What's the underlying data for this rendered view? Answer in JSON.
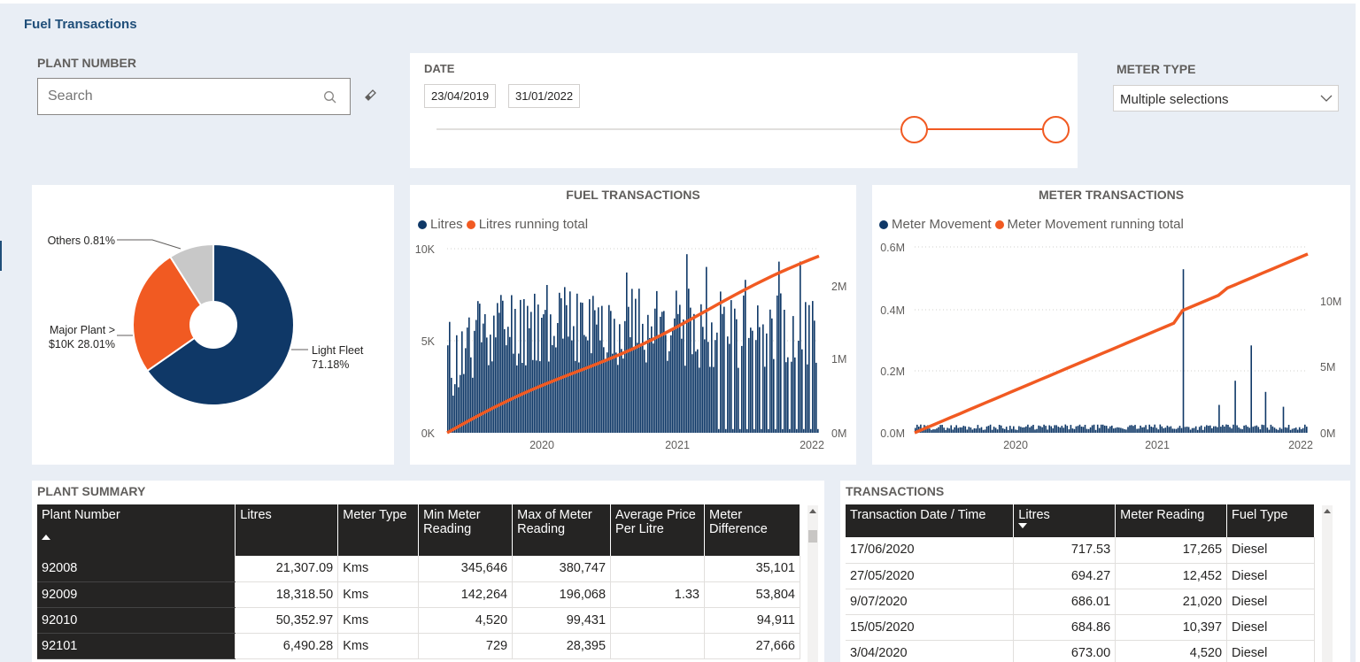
{
  "page": {
    "title": "Fuel Transactions"
  },
  "plant_slicer": {
    "title": "PLANT NUMBER",
    "placeholder": "Search",
    "search_icon": "search-icon",
    "clear_icon": "eraser-icon"
  },
  "date_slicer": {
    "title": "DATE",
    "start": "23/04/2019",
    "end": "31/01/2022"
  },
  "meter_slicer": {
    "title": "METER TYPE",
    "value": "Multiple selections",
    "icon": "chevron-down-icon"
  },
  "colors": {
    "navy": "#0f3867",
    "orange": "#f15a22",
    "grey": "#c8c8c8",
    "header": "#252423"
  },
  "pie": {
    "labels": {
      "others": "Others 0.81%",
      "major_1": "Major Plant >",
      "major_2": "$10K 28.01%",
      "light_1": "Light Fleet",
      "light_2": "71.18%"
    }
  },
  "fuel_chart": {
    "title": "FUEL TRANSACTIONS",
    "legend": [
      "Litres",
      "Litres running total"
    ],
    "left_ticks": [
      "10K",
      "5K",
      "0K"
    ],
    "right_ticks": [
      "2M",
      "1M",
      "0M"
    ],
    "x_ticks": [
      "2020",
      "2021",
      "2022"
    ]
  },
  "meter_chart": {
    "title": "METER TRANSACTIONS",
    "legend": [
      "Meter Movement",
      "Meter Movement running total"
    ],
    "left_ticks": [
      "0.6M",
      "0.4M",
      "0.2M",
      "0.0M"
    ],
    "right_ticks": [
      "10M",
      "5M",
      "0M"
    ],
    "x_ticks": [
      "2020",
      "2021",
      "2022"
    ]
  },
  "chart_data": [
    {
      "type": "pie",
      "categories": [
        "Light Fleet",
        "Major Plant > $10K",
        "Others"
      ],
      "values": [
        71.18,
        28.01,
        0.81
      ],
      "unit": "%"
    },
    {
      "type": "bar",
      "title": "FUEL TRANSACTIONS",
      "series": [
        {
          "name": "Litres",
          "axis": "left",
          "ylim": [
            0,
            10000
          ]
        },
        {
          "name": "Litres running total",
          "axis": "right",
          "type": "line",
          "ylim": [
            0,
            2500000
          ]
        }
      ],
      "x_range": [
        "2019-04-23",
        "2022-01-31"
      ],
      "x_ticks": [
        "2020",
        "2021",
        "2022"
      ]
    },
    {
      "type": "bar",
      "title": "METER TRANSACTIONS",
      "series": [
        {
          "name": "Meter Movement",
          "axis": "left",
          "ylim": [
            0,
            600000
          ]
        },
        {
          "name": "Meter Movement running total",
          "axis": "right",
          "type": "line",
          "ylim": [
            0,
            15000000
          ]
        }
      ],
      "x_range": [
        "2019-04-23",
        "2022-01-31"
      ],
      "x_ticks": [
        "2020",
        "2021",
        "2022"
      ]
    }
  ],
  "plant_summary": {
    "title": "PLANT SUMMARY",
    "columns": [
      "Plant Number",
      "Litres",
      "Meter Type",
      "Min Meter Reading",
      "Max of Meter Reading",
      "Average Price Per Litre",
      "Meter Difference"
    ],
    "rows": [
      [
        "92008",
        "21,307.09",
        "Kms",
        "345,646",
        "380,747",
        "",
        "35,101"
      ],
      [
        "92009",
        "18,318.50",
        "Kms",
        "142,264",
        "196,068",
        "1.33",
        "53,804"
      ],
      [
        "92010",
        "50,352.97",
        "Kms",
        "4,520",
        "99,431",
        "",
        "94,911"
      ],
      [
        "92101",
        "6,490.28",
        "Kms",
        "729",
        "28,395",
        "",
        "27,666"
      ]
    ]
  },
  "transactions": {
    "title": "TRANSACTIONS",
    "columns": [
      "Transaction Date / Time",
      "Litres",
      "Meter Reading",
      "Fuel Type"
    ],
    "rows": [
      [
        "17/06/2020",
        "717.53",
        "17,265",
        "Diesel"
      ],
      [
        "27/05/2020",
        "694.27",
        "12,452",
        "Diesel"
      ],
      [
        "9/07/2020",
        "686.01",
        "21,020",
        "Diesel"
      ],
      [
        "15/05/2020",
        "684.86",
        "10,397",
        "Diesel"
      ],
      [
        "3/04/2020",
        "673.00",
        "4,520",
        "Diesel"
      ]
    ]
  }
}
